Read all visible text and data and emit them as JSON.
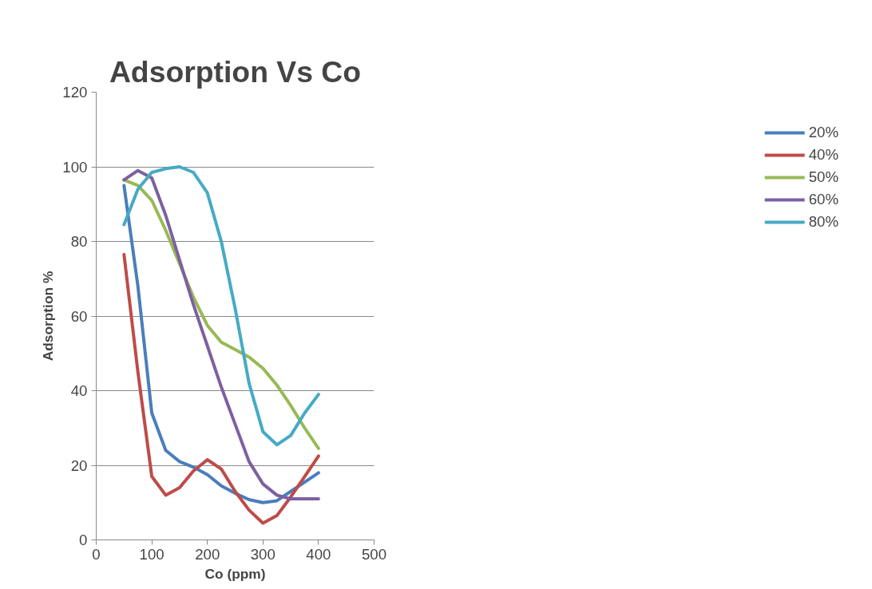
{
  "chart_data": {
    "type": "line",
    "title": "Adsorption Vs Co",
    "xlabel": "Co (ppm)",
    "ylabel": "Adsorption %",
    "x": [
      50,
      75,
      100,
      125,
      150,
      175,
      200,
      225,
      250,
      275,
      300,
      325,
      350,
      375,
      400
    ],
    "series": [
      {
        "name": "20%",
        "color": "#4a7ebb",
        "values": [
          95,
          68,
          34,
          24,
          21,
          19.5,
          17.5,
          14.5,
          12.5,
          10.8,
          10,
          10.5,
          13,
          15.5,
          18
        ]
      },
      {
        "name": "40%",
        "color": "#be4b48",
        "values": [
          76.5,
          45,
          17,
          12,
          14,
          18.5,
          21.5,
          19,
          13,
          8,
          4.5,
          6.5,
          11.5,
          17,
          22.5
        ]
      },
      {
        "name": "50%",
        "color": "#98b954",
        "values": [
          96.5,
          95,
          91,
          83,
          74,
          65,
          57.5,
          53,
          51,
          49,
          46,
          41.5,
          36,
          30,
          24.5
        ]
      },
      {
        "name": "60%",
        "color": "#7d60a0",
        "values": [
          96.5,
          99,
          97,
          87,
          75,
          63,
          52,
          41,
          31,
          21,
          15,
          12,
          11,
          11,
          11
        ]
      },
      {
        "name": "80%",
        "color": "#46aac5",
        "values": [
          84.5,
          94,
          98.5,
          99.5,
          100,
          98.5,
          93,
          80,
          62,
          42,
          29,
          25.5,
          28,
          34,
          39
        ]
      }
    ],
    "xlim": [
      0,
      500
    ],
    "xticks": [
      0,
      100,
      200,
      300,
      400,
      500
    ],
    "ylim": [
      0,
      120
    ],
    "yticks": [
      0,
      20,
      40,
      60,
      80,
      100,
      120
    ],
    "grid": "y",
    "legend": "right",
    "line_style": "solid"
  }
}
